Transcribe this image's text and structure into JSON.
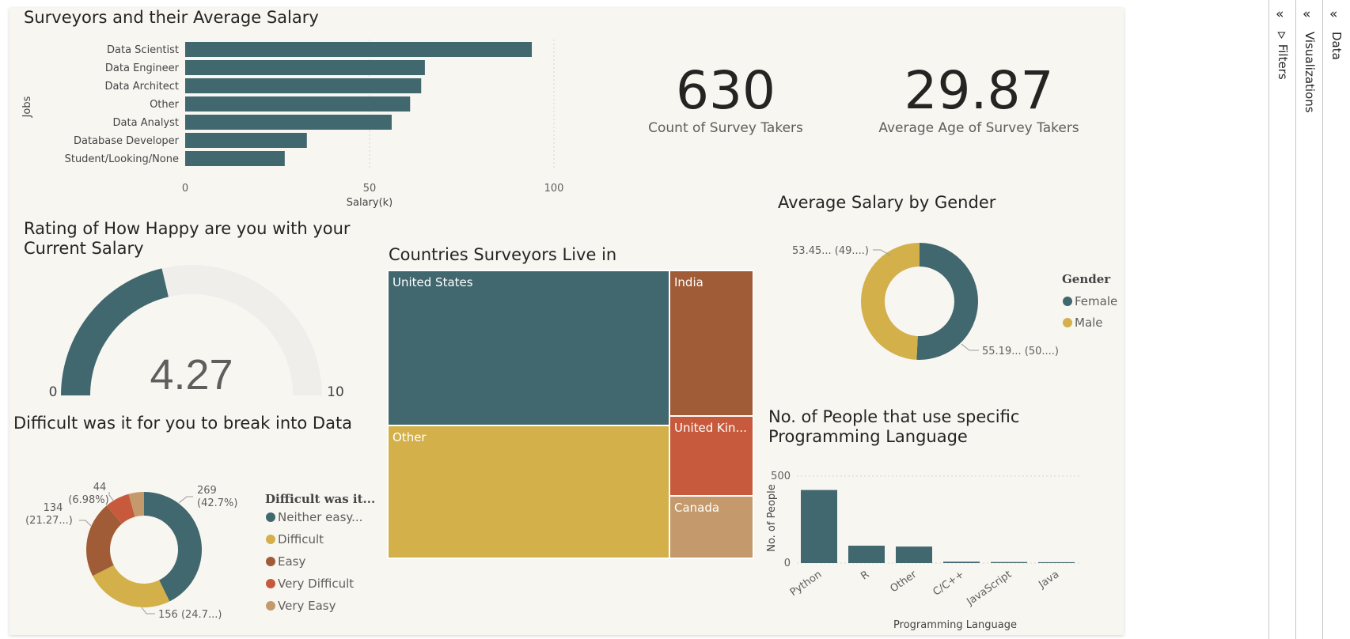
{
  "colors": {
    "teal": "#41676f",
    "gold": "#d3b04a",
    "brown": "#a05c36",
    "red": "#c75a3c",
    "tan": "#c49a6c",
    "gauge_bg": "#efeeeb"
  },
  "salary_chart": {
    "title": "Surveyors and their Average Salary",
    "chart_data": {
      "type": "bar",
      "orientation": "horizontal",
      "categories": [
        "Data Scientist",
        "Data Engineer",
        "Data Architect",
        "Other",
        "Data Analyst",
        "Database Developer",
        "Student/Looking/None"
      ],
      "values": [
        94,
        65,
        64,
        61,
        56,
        33,
        27
      ],
      "xlabel": "Salary(k)",
      "ylabel": "Jobs",
      "xlim": [
        0,
        100
      ],
      "xticks": [
        "0",
        "50",
        "100"
      ]
    }
  },
  "cards": {
    "count": {
      "value": "630",
      "label": "Count of Survey Takers"
    },
    "age": {
      "value": "29.87",
      "label": "Average Age of Survey Takers"
    }
  },
  "gauge": {
    "title": "Rating of How Happy are you with your Current Salary",
    "value": 4.27,
    "value_text": "4.27",
    "min": 0,
    "max": 10,
    "min_label": "0",
    "max_label": "10"
  },
  "treemap": {
    "title": "Countries Surveyors Live in",
    "chart_data": {
      "type": "treemap",
      "items": [
        {
          "label": "United States",
          "color": "#41676f"
        },
        {
          "label": "Other",
          "color": "#d3b04a"
        },
        {
          "label": "India",
          "color": "#a05c36"
        },
        {
          "label": "United Kin...",
          "color": "#c75a3c"
        },
        {
          "label": "Canada",
          "color": "#c49a6c"
        }
      ]
    }
  },
  "gender_chart": {
    "title": "Average Salary by Gender",
    "legend_title": "Gender",
    "chart_data": {
      "type": "pie",
      "donut": true,
      "categories": [
        "Female",
        "Male"
      ],
      "values": [
        55.19,
        53.45
      ],
      "data_labels": [
        "55.19... (50....)",
        "53.45... (49....)"
      ]
    }
  },
  "difficulty_chart": {
    "title": "Difficult was it for you to break into Data",
    "legend_title": "Difficult was it...",
    "chart_data": {
      "type": "pie",
      "donut": true,
      "categories": [
        "Neither easy...",
        "Difficult",
        "Easy",
        "Very Difficult",
        "Very Easy"
      ],
      "values": [
        269,
        156,
        134,
        44,
        27
      ],
      "data_labels": {
        "neither_1": "269",
        "neither_2": "(42.7%)",
        "difficult": "156 (24.7...)",
        "easy_1": "134",
        "easy_2": "(21.27...)",
        "vdiff_1": "44",
        "vdiff_2": "(6.98%)"
      }
    }
  },
  "lang_chart": {
    "title": "No. of People that use specific Programming Language",
    "chart_data": {
      "type": "bar",
      "categories": [
        "Python",
        "R",
        "Other",
        "C/C++",
        "JavaScript",
        "Java"
      ],
      "values": [
        420,
        100,
        95,
        8,
        6,
        5
      ],
      "xlabel": "Programming Language",
      "ylabel": "No. of People",
      "ylim": [
        0,
        500
      ],
      "yticks": [
        "0",
        "500"
      ]
    }
  },
  "panes": {
    "filters": "Filters",
    "visualizations": "Visualizations",
    "data": "Data",
    "collapse_glyph": "«"
  }
}
